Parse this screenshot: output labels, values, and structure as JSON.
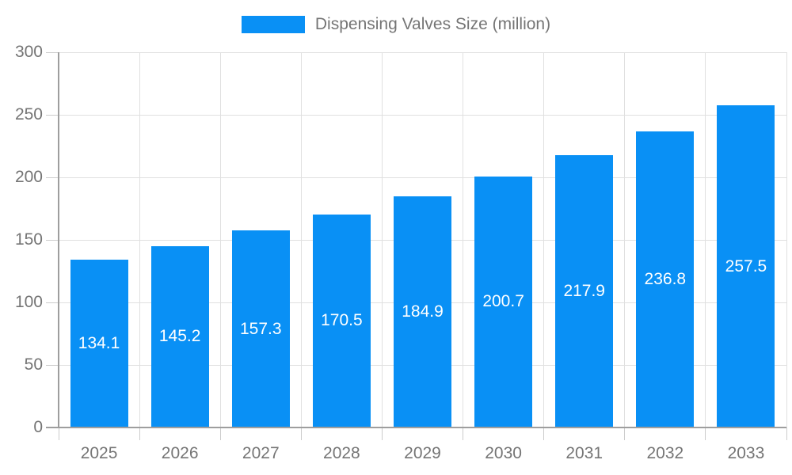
{
  "chart_data": {
    "type": "bar",
    "legend_label": "Dispensing Valves Size (million)",
    "categories": [
      "2025",
      "2026",
      "2027",
      "2028",
      "2029",
      "2030",
      "2031",
      "2032",
      "2033"
    ],
    "values": [
      134.1,
      145.2,
      157.3,
      170.5,
      184.9,
      200.7,
      217.9,
      236.8,
      257.5
    ],
    "value_labels": [
      "134.1",
      "145.2",
      "157.3",
      "170.5",
      "184.9",
      "200.7",
      "217.9",
      "236.8",
      "257.5"
    ],
    "ylim": [
      0,
      300
    ],
    "yticks": [
      0,
      50,
      100,
      150,
      200,
      250,
      300
    ],
    "ytick_labels": [
      "0",
      "50",
      "100",
      "150",
      "200",
      "250",
      "300"
    ],
    "grid": true,
    "legend_position": "top",
    "xlabel": "",
    "ylabel": "",
    "colors": {
      "bar": "#0990f5",
      "grid": "#e0e0e0",
      "tick": "#cccccc",
      "axis": "#9e9e9e",
      "text": "#757575",
      "value_text": "#ffffff",
      "background": "#ffffff"
    }
  }
}
